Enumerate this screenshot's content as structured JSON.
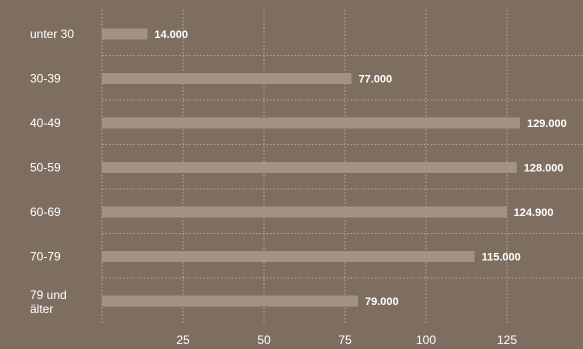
{
  "chart_data": {
    "type": "bar",
    "orientation": "horizontal",
    "categories": [
      "unter 30",
      "30-39",
      "40-49",
      "50-59",
      "60-69",
      "70-79",
      "79 und älter"
    ],
    "values": [
      14000,
      77000,
      129000,
      128000,
      124900,
      115000,
      79000
    ],
    "value_labels": [
      "14.000",
      "77.000",
      "129.000",
      "128.000",
      "124.900",
      "115.000",
      "79.000"
    ],
    "xticks": [
      25,
      50,
      75,
      100,
      125
    ],
    "xlim": [
      0,
      150000
    ],
    "tick_scale": 1000,
    "grid": true,
    "colors": {
      "background": "#7e6e60",
      "bar": "#a29382",
      "grid": "#d6ccc0",
      "text": "#ffffff"
    }
  }
}
